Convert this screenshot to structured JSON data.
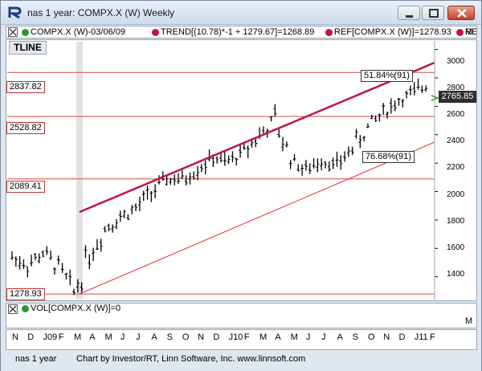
{
  "window": {
    "title": "nas 1 year: COMPX.X (W) Weekly"
  },
  "legend": {
    "symbol": "COMPX.X (W)-03/06/09",
    "trend": "TREND[(10.78)*-1 + 1279.67]=1268.89",
    "ref": "REF[COMPX.X (W)]=1278.93",
    "ref2": "REF"
  },
  "chart": {
    "tool_label": "TLINE",
    "last_price": "2765.85",
    "ref_levels": [
      "2837.82",
      "2528.82",
      "2089.41",
      "1278.93"
    ],
    "pct_labels": [
      "51.84%(91)",
      "76.68%(91)"
    ],
    "y_ticks": [
      "3000",
      "2800",
      "2600",
      "2400",
      "2200",
      "2000",
      "1800",
      "1600",
      "1400"
    ],
    "colors": {
      "ref_line": "#d44a4a",
      "trend_upper": "#c0154a",
      "trend_lower": "#e0303a",
      "price_bar": "#000000",
      "pointer": "#2a9a2a"
    }
  },
  "chart_data": {
    "type": "line",
    "title": "nas 1 year: COMPX.X (W) Weekly",
    "xlabel": "",
    "ylabel": "",
    "ylim": [
      1240,
      3060
    ],
    "x": [
      "N",
      "D",
      "J09",
      "F",
      "M",
      "A",
      "M",
      "J",
      "J",
      "A",
      "S",
      "O",
      "N",
      "D",
      "J10",
      "F",
      "M",
      "A",
      "M",
      "J",
      "J",
      "A",
      "S",
      "O",
      "N",
      "D",
      "J11",
      "F"
    ],
    "series": [
      {
        "name": "COMPX.X (W)",
        "values": [
          1540,
          1480,
          1570,
          1460,
          1290,
          1560,
          1740,
          1820,
          1880,
          1990,
          2080,
          2080,
          2160,
          2230,
          2210,
          2280,
          2400,
          2500,
          2230,
          2150,
          2220,
          2180,
          2310,
          2450,
          2560,
          2640,
          2700,
          2765
        ]
      }
    ],
    "reference_lines": [
      2837.82,
      2528.82,
      2089.41,
      1278.93
    ]
  },
  "volume": {
    "legend": "VOL[COMPX.X (W)]=0"
  },
  "x_axis": {
    "labels": [
      "N",
      "D",
      "J09",
      "F",
      "M",
      "A",
      "M",
      "J",
      "J",
      "A",
      "S",
      "O",
      "N",
      "D",
      "J10",
      "F",
      "M",
      "A",
      "M",
      "J",
      "J",
      "A",
      "S",
      "O",
      "N",
      "D",
      "J11",
      "F"
    ]
  },
  "status": {
    "left": "nas 1 year",
    "credit": "Chart by Investor/RT, Linn Software, Inc. www.linnsoft.com"
  },
  "misc": {
    "m_mark": "M"
  }
}
